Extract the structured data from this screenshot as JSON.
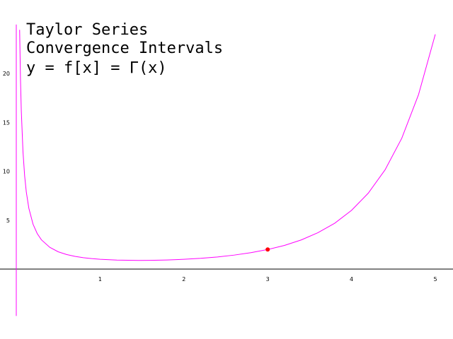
{
  "chart_data": {
    "type": "line",
    "title_lines": [
      "Taylor Series",
      "Convergence Intervals",
      "y = f[x] = Γ(x)"
    ],
    "xlabel": "",
    "ylabel": "",
    "xlim": [
      -0.05,
      5.2
    ],
    "ylim": [
      -4,
      25
    ],
    "x_ticks": [
      1,
      2,
      3,
      4,
      5
    ],
    "y_ticks": [
      5,
      10,
      15,
      20
    ],
    "grid": false,
    "series": [
      {
        "color": "#ff00ff",
        "x": [
          0.04,
          0.05,
          0.06,
          0.08,
          0.1,
          0.12,
          0.15,
          0.2,
          0.25,
          0.3,
          0.4,
          0.5,
          0.6,
          0.7,
          0.8,
          0.9,
          1.0,
          1.2,
          1.4,
          1.46,
          1.6,
          1.8,
          2.0,
          2.2,
          2.4,
          2.6,
          2.8,
          3.0,
          3.2,
          3.4,
          3.6,
          3.8,
          4.0,
          4.2,
          4.4,
          4.6,
          4.8,
          5.0
        ],
        "y": [
          24.46,
          19.47,
          16.15,
          11.99,
          9.51,
          7.86,
          6.22,
          4.59,
          3.63,
          2.99,
          2.22,
          1.77,
          1.49,
          1.3,
          1.16,
          1.07,
          1.0,
          0.92,
          0.89,
          0.886,
          0.89,
          0.93,
          1.0,
          1.1,
          1.24,
          1.43,
          1.68,
          2.0,
          2.42,
          2.98,
          3.72,
          4.69,
          6.0,
          7.76,
          10.14,
          13.38,
          17.84,
          24.0
        ]
      }
    ],
    "highlight_point": {
      "x": 3,
      "y": 2,
      "color": "#ff0000"
    }
  }
}
